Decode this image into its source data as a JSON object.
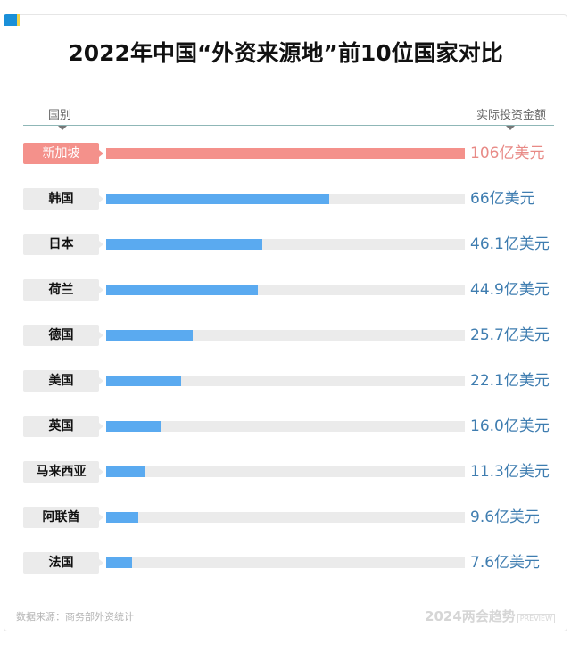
{
  "header": {
    "title": "2022年中国“外资来源地”前10位国家对比",
    "col_left": "国别",
    "col_right": "实际投资金额"
  },
  "colors": {
    "highlight": "#f4918b",
    "bar": "#5aaaf0",
    "track": "#ebebeb",
    "value_text": "#3f7db0",
    "corner_blue": "#1a8fd8",
    "corner_yellow": "#f2d34a"
  },
  "rows": [
    {
      "country": "新加坡",
      "value": "106亿美元",
      "highlight": true
    },
    {
      "country": "韩国",
      "value": "66亿美元"
    },
    {
      "country": "日本",
      "value": "46.1亿美元"
    },
    {
      "country": "荷兰",
      "value": "44.9亿美元"
    },
    {
      "country": "德国",
      "value": "25.7亿美元"
    },
    {
      "country": "美国",
      "value": "22.1亿美元"
    },
    {
      "country": "英国",
      "value": "16.0亿美元"
    },
    {
      "country": "马来西亚",
      "value": "11.3亿美元"
    },
    {
      "country": "阿联酋",
      "value": "9.6亿美元"
    },
    {
      "country": "法国",
      "value": "7.6亿美元"
    }
  ],
  "footer": {
    "source": "数据来源：商务部外资统计",
    "brand": "2024两会趋势",
    "brand_tag": "PREVIEW"
  },
  "chart_data": {
    "type": "bar",
    "orientation": "horizontal",
    "title": "2022年中国“外资来源地”前10位国家对比",
    "xlabel": "实际投资金额",
    "ylabel": "国别",
    "unit": "亿美元",
    "categories": [
      "新加坡",
      "韩国",
      "日本",
      "荷兰",
      "德国",
      "美国",
      "英国",
      "马来西亚",
      "阿联酋",
      "法国"
    ],
    "values": [
      106,
      66,
      46.1,
      44.9,
      25.7,
      22.1,
      16.0,
      11.3,
      9.6,
      7.6
    ],
    "highlighted": [
      "新加坡"
    ],
    "xlim": [
      0,
      106
    ],
    "grid": false,
    "legend": null,
    "source": "数据来源：商务部外资统计"
  }
}
